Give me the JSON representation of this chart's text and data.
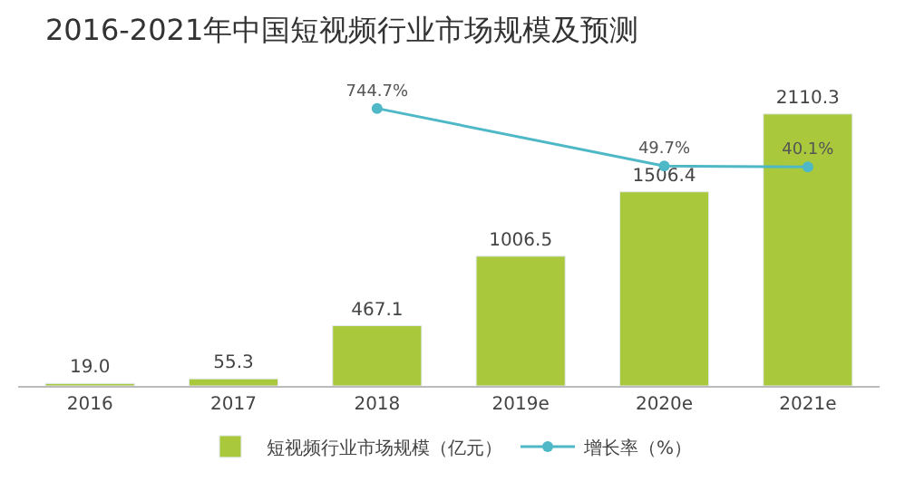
{
  "chart_data": {
    "type": "bar",
    "title": "2016-2021年中国短视频行业市场规模及预测",
    "categories": [
      "2016",
      "2017",
      "2018",
      "2019e",
      "2020e",
      "2021e"
    ],
    "series": [
      {
        "name": "短视频行业市场规模（亿元）",
        "color": "#a9c83c",
        "values": [
          19.0,
          55.3,
          467.1,
          1006.5,
          1506.4,
          2110.3
        ],
        "value_labels": [
          "19.0",
          "55.3",
          "467.1",
          "1006.5",
          "1506.4",
          "2110.3"
        ]
      },
      {
        "name": "增长率（%）",
        "type": "line",
        "axis": "y2",
        "color": "#4fb8c6",
        "marker": "circle",
        "values": [
          null,
          null,
          744.7,
          null,
          49.7,
          40.1
        ],
        "value_labels": [
          null,
          null,
          "744.7%",
          null,
          "49.7%",
          "40.1%"
        ]
      }
    ],
    "legend": "bottom"
  }
}
